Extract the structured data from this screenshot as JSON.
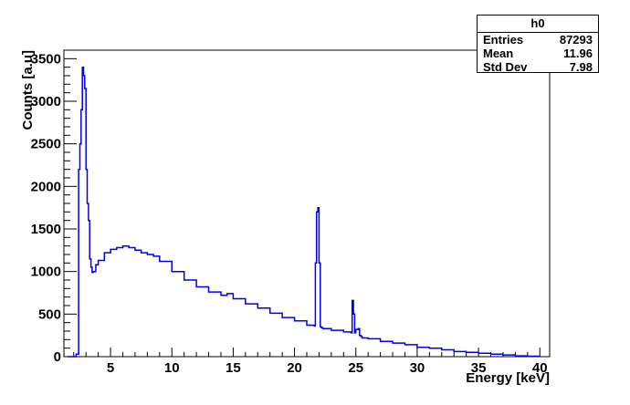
{
  "chart_data": {
    "type": "line",
    "histogram_name": "h0",
    "xlabel": "Energy [keV]",
    "ylabel": "Counts [a.u]",
    "xlim": [
      1.2,
      40.8
    ],
    "ylim": [
      0,
      3600
    ],
    "x_ticks": [
      5,
      10,
      15,
      20,
      25,
      30,
      35,
      40
    ],
    "y_ticks": [
      0,
      500,
      1000,
      1500,
      2000,
      2500,
      3000,
      3500
    ],
    "stats": [
      {
        "label": "Entries",
        "value": "87293"
      },
      {
        "label": "Mean",
        "value": "11.96"
      },
      {
        "label": "Std Dev",
        "value": "7.98"
      }
    ],
    "line_color": "#0000ee",
    "series": [
      {
        "x": [
          1.5,
          2.0,
          2.2,
          2.4,
          2.5,
          2.6,
          2.7,
          2.8,
          2.9,
          3.0,
          3.1,
          3.2,
          3.3,
          3.4,
          3.5,
          3.6,
          3.8,
          4.0,
          4.5,
          5.0,
          5.5,
          6.0,
          6.5,
          7.0,
          7.5,
          8.0,
          8.5,
          9.0,
          10.0,
          11.0,
          12.0,
          13.0,
          14.0,
          14.5,
          15.0,
          16.0,
          17.0,
          18.0,
          19.0,
          20.0,
          21.0,
          21.6,
          21.7,
          21.8,
          21.9,
          22.0,
          22.1,
          22.2,
          22.3,
          23.0,
          24.0,
          24.6,
          24.7,
          24.8,
          24.9,
          25.0,
          25.2,
          25.3,
          25.4,
          25.5,
          26.0,
          27.0,
          28.0,
          29.0,
          30.0,
          31.0,
          32.0,
          33.0,
          34.0,
          35.0,
          36.0,
          37.0,
          38.0,
          39.0,
          40.0
        ],
        "y": [
          0,
          0,
          30,
          2200,
          2500,
          2900,
          3400,
          3300,
          3150,
          2200,
          1800,
          1600,
          1150,
          1050,
          990,
          1000,
          1080,
          1130,
          1220,
          1260,
          1280,
          1300,
          1280,
          1250,
          1220,
          1200,
          1180,
          1120,
          1000,
          900,
          820,
          760,
          720,
          740,
          680,
          620,
          570,
          510,
          460,
          420,
          370,
          360,
          1100,
          1700,
          1750,
          1100,
          350,
          340,
          330,
          310,
          290,
          280,
          660,
          500,
          280,
          320,
          330,
          250,
          240,
          220,
          210,
          180,
          160,
          140,
          110,
          100,
          80,
          60,
          50,
          40,
          30,
          20,
          10,
          5,
          0
        ]
      }
    ]
  }
}
